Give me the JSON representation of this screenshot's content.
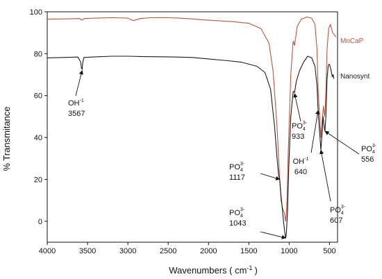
{
  "chart_data": {
    "type": "line",
    "xlabel": "Wavenumbers (  cm",
    "xlabel_sup": "-1",
    "xlabel_close": ")",
    "ylabel": "% Transmitance",
    "xlim": [
      4000,
      400
    ],
    "ylim": [
      -10,
      100
    ],
    "x_ticks": [
      4000,
      3500,
      3000,
      2500,
      2000,
      1500,
      1000,
      500
    ],
    "y_ticks": [
      0,
      20,
      40,
      60,
      80,
      100
    ],
    "grid": false,
    "legend_placement": "inline-right",
    "series": [
      {
        "name": "MnCaP",
        "color": "#c0533a",
        "points": [
          [
            4000,
            96.5
          ],
          [
            3800,
            96.6
          ],
          [
            3600,
            96.8
          ],
          [
            3570,
            96.0
          ],
          [
            3540,
            96.8
          ],
          [
            3400,
            97.0
          ],
          [
            3200,
            97.2
          ],
          [
            3000,
            97.0
          ],
          [
            2930,
            95.8
          ],
          [
            2850,
            96.8
          ],
          [
            2700,
            97.2
          ],
          [
            2500,
            97.2
          ],
          [
            2350,
            97.0
          ],
          [
            2000,
            96.0
          ],
          [
            1700,
            95.3
          ],
          [
            1500,
            94.5
          ],
          [
            1350,
            92.0
          ],
          [
            1250,
            85.0
          ],
          [
            1200,
            72.0
          ],
          [
            1150,
            45.0
          ],
          [
            1117,
            20.0
          ],
          [
            1100,
            10.0
          ],
          [
            1080,
            6.0
          ],
          [
            1060,
            4.0
          ],
          [
            1043,
            0.0
          ],
          [
            1030,
            6.0
          ],
          [
            1010,
            35.0
          ],
          [
            980,
            70.0
          ],
          [
            950,
            86.0
          ],
          [
            933,
            84.0
          ],
          [
            900,
            93.0
          ],
          [
            850,
            96.5
          ],
          [
            780,
            97.5
          ],
          [
            720,
            97.0
          ],
          [
            680,
            94.0
          ],
          [
            655,
            82.0
          ],
          [
            640,
            62.0
          ],
          [
            625,
            52.0
          ],
          [
            607,
            40.0
          ],
          [
            590,
            48.0
          ],
          [
            575,
            55.0
          ],
          [
            560,
            50.0
          ],
          [
            550,
            56.0
          ],
          [
            530,
            82.0
          ],
          [
            510,
            92.0
          ],
          [
            490,
            94.0
          ],
          [
            460,
            90.0
          ],
          [
            440,
            89.0
          ],
          [
            420,
            88.0
          ]
        ]
      },
      {
        "name": "Nanosynt",
        "color": "#1a1a1a",
        "points": [
          [
            4000,
            78.0
          ],
          [
            3800,
            78.2
          ],
          [
            3620,
            78.4
          ],
          [
            3585,
            76.0
          ],
          [
            3575,
            73.0
          ],
          [
            3567,
            72.5
          ],
          [
            3560,
            75.5
          ],
          [
            3545,
            78.2
          ],
          [
            3400,
            78.5
          ],
          [
            3200,
            78.8
          ],
          [
            3000,
            78.8
          ],
          [
            2800,
            78.6
          ],
          [
            2500,
            78.5
          ],
          [
            2200,
            78.2
          ],
          [
            2000,
            77.5
          ],
          [
            1800,
            76.8
          ],
          [
            1600,
            76.0
          ],
          [
            1400,
            74.0
          ],
          [
            1300,
            71.0
          ],
          [
            1230,
            63.0
          ],
          [
            1180,
            45.0
          ],
          [
            1150,
            30.0
          ],
          [
            1130,
            22.0
          ],
          [
            1117,
            20.0
          ],
          [
            1105,
            14.0
          ],
          [
            1090,
            8.0
          ],
          [
            1070,
            0.0
          ],
          [
            1055,
            -5.0
          ],
          [
            1043,
            -8.0
          ],
          [
            1035,
            -6.0
          ],
          [
            1020,
            5.0
          ],
          [
            1005,
            26.0
          ],
          [
            980,
            50.0
          ],
          [
            950,
            62.0
          ],
          [
            933,
            61.5
          ],
          [
            910,
            67.0
          ],
          [
            870,
            72.0
          ],
          [
            820,
            76.0
          ],
          [
            770,
            78.8
          ],
          [
            720,
            78.0
          ],
          [
            680,
            74.0
          ],
          [
            655,
            65.0
          ],
          [
            640,
            52.0
          ],
          [
            625,
            44.0
          ],
          [
            607,
            34.0
          ],
          [
            595,
            40.0
          ],
          [
            580,
            50.0
          ],
          [
            565,
            45.0
          ],
          [
            556,
            43.0
          ],
          [
            545,
            50.0
          ],
          [
            530,
            68.0
          ],
          [
            515,
            74.5
          ],
          [
            500,
            75.0
          ],
          [
            480,
            72.0
          ],
          [
            465,
            69.0
          ],
          [
            455,
            70.0
          ],
          [
            445,
            68.0
          ]
        ]
      }
    ],
    "annotations": [
      {
        "base": "OH",
        "sup": "-1",
        "sub": "",
        "value": "3567",
        "target": [
          3567,
          72.0
        ]
      },
      {
        "base": "PO",
        "sup": "3-",
        "sub": "4",
        "value": "1117",
        "target": [
          1117,
          20.0
        ]
      },
      {
        "base": "PO",
        "sup": "3-",
        "sub": "4",
        "value": "1043",
        "target": [
          1043,
          -8.0
        ]
      },
      {
        "base": "PO",
        "sup": "3-",
        "sub": "4",
        "value": "933",
        "target": [
          933,
          61.0
        ]
      },
      {
        "base": "OH",
        "sup": "-1",
        "sub": "",
        "value": "640",
        "target": [
          640,
          53.0
        ]
      },
      {
        "base": "PO",
        "sup": "3-",
        "sub": "4",
        "value": "607",
        "target": [
          607,
          34.0
        ]
      },
      {
        "base": "PO",
        "sup": "3-",
        "sub": "4",
        "value": "556",
        "target": [
          556,
          43.0
        ]
      }
    ]
  }
}
